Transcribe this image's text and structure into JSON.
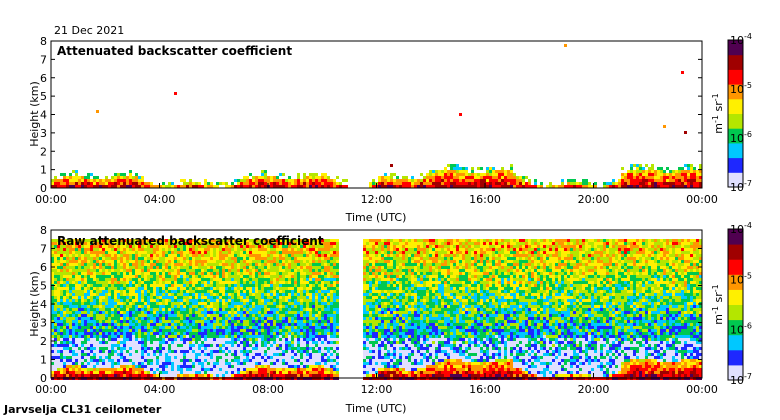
{
  "header": {
    "date": "21 Dec 2021"
  },
  "footer": {
    "instrument": "Jarvselja CL31 ceilometer"
  },
  "colorbar": {
    "unit_main": "m",
    "unit_main_exp": "-1",
    "unit_sr": "sr",
    "unit_sr_exp": "-1",
    "ticks": [
      {
        "base": "10",
        "exp": "-4",
        "value": 0.0001
      },
      {
        "base": "10",
        "exp": "-5",
        "value": 1e-05
      },
      {
        "base": "10",
        "exp": "-6",
        "value": 1e-06
      },
      {
        "base": "10",
        "exp": "-7",
        "value": 1e-07
      }
    ],
    "colors": [
      "#e0e0ff",
      "#1e28ff",
      "#00c8ff",
      "#00c850",
      "#b4e600",
      "#fff000",
      "#ff9600",
      "#ff0000",
      "#a00000",
      "#500050"
    ],
    "scale": "log"
  },
  "chart_data": [
    {
      "type": "heatmap",
      "title": "Attenuated backscatter coefficient",
      "xlabel": "Time (UTC)",
      "ylabel": "Height (km)",
      "x_ticks": [
        "00:00",
        "04:00",
        "08:00",
        "12:00",
        "16:00",
        "20:00",
        "00:00"
      ],
      "x_range_hours": [
        0,
        24
      ],
      "y_ticks": [
        "0",
        "1",
        "2",
        "3",
        "4",
        "5",
        "6",
        "7",
        "8"
      ],
      "ylim": [
        0,
        8
      ],
      "data_gap_hours": [
        10.9,
        11.7
      ],
      "z_range": [
        1e-07,
        0.0001
      ],
      "z_scale": "log",
      "colorbar_ticks": [
        "1e-7",
        "1e-6",
        "1e-5",
        "1e-4"
      ]
    },
    {
      "type": "heatmap",
      "title": "Raw attenuated backscatter coefficient",
      "xlabel": "Time (UTC)",
      "ylabel": "Height (km)",
      "x_ticks": [
        "00:00",
        "04:00",
        "08:00",
        "12:00",
        "16:00",
        "20:00",
        "00:00"
      ],
      "x_range_hours": [
        0,
        24
      ],
      "y_ticks": [
        "0",
        "1",
        "2",
        "3",
        "4",
        "5",
        "6",
        "7",
        "8"
      ],
      "ylim": [
        0,
        8
      ],
      "data_gap_hours": [
        10.6,
        11.5
      ],
      "z_range": [
        1e-07,
        0.0001
      ],
      "z_scale": "log",
      "colorbar_ticks": [
        "1e-7",
        "1e-6",
        "1e-5",
        "1e-4"
      ]
    }
  ]
}
